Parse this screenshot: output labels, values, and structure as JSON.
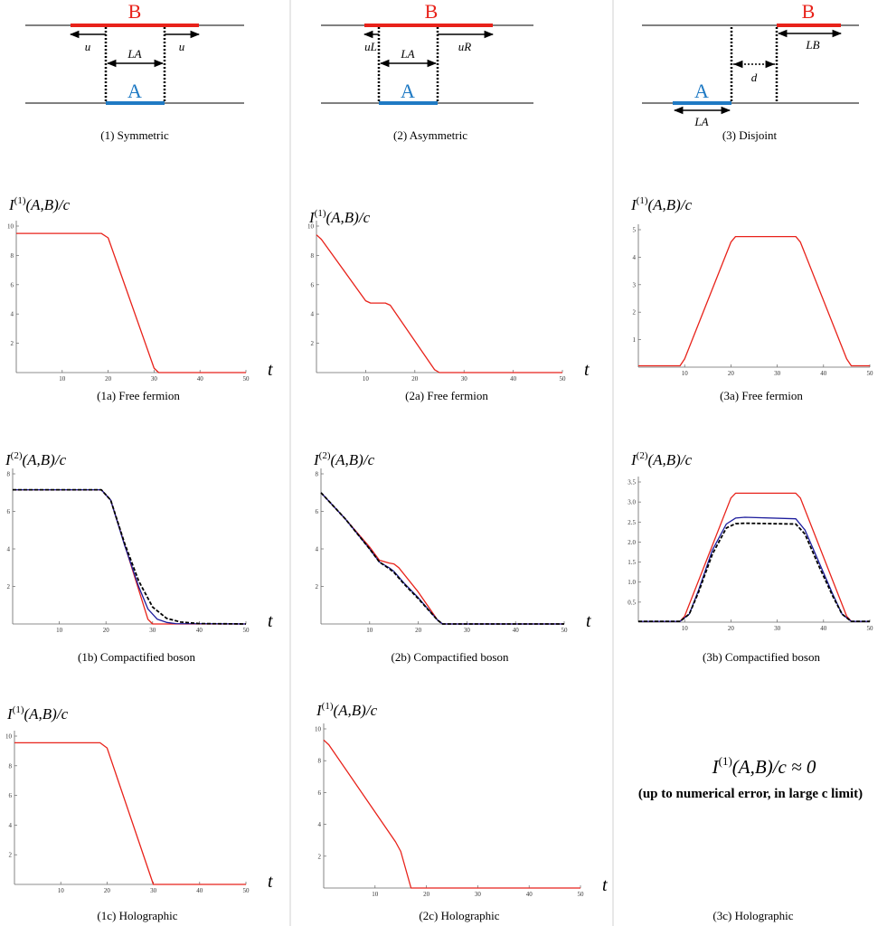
{
  "diagrams": [
    {
      "caption": "(1) Symmetric",
      "label_a": "A",
      "label_b": "B",
      "dim_left": "u",
      "dim_mid": "LA",
      "dim_right": "u"
    },
    {
      "caption": "(2) Asymmetric",
      "label_a": "A",
      "label_b": "B",
      "dim_left": "uL",
      "dim_mid": "LA",
      "dim_right": "uR"
    },
    {
      "caption": "(3) Disjoint",
      "label_a": "A",
      "label_b": "B",
      "dim_a": "LA",
      "dim_d": "d",
      "dim_b": "LB"
    }
  ],
  "colors": {
    "red": "#e8221a",
    "blue": "#1f7ac4",
    "navy": "#1c1c9c",
    "black": "#000000",
    "grid": "#d0d0d0"
  },
  "axis_var": "t",
  "chart_data": [
    {
      "id": "1a",
      "type": "line",
      "caption": "(1a) Free fermion",
      "ylabel": "I(1)(A,B)/c",
      "xlabel": "t",
      "xlim": [
        0,
        50
      ],
      "ylim": [
        0,
        10
      ],
      "xticks": [
        "10",
        "20",
        "30",
        "40",
        "50"
      ],
      "yticks": [
        "2",
        "4",
        "6",
        "8",
        "10"
      ],
      "series": [
        {
          "name": "red",
          "color": "#e8221a",
          "dash": false,
          "x": [
            0,
            18.5,
            20,
            30,
            31,
            50
          ],
          "y": [
            9.5,
            9.5,
            9.2,
            0.3,
            0,
            0
          ]
        }
      ]
    },
    {
      "id": "2a",
      "type": "line",
      "caption": "(2a) Free fermion",
      "ylabel": "I(1)(A,B)/c",
      "xlabel": "t",
      "xlim": [
        0,
        50
      ],
      "ylim": [
        0,
        10
      ],
      "xticks": [
        "10",
        "20",
        "30",
        "40",
        "50"
      ],
      "yticks": [
        "2",
        "4",
        "6",
        "8",
        "10"
      ],
      "series": [
        {
          "name": "red",
          "color": "#e8221a",
          "dash": false,
          "x": [
            0,
            1,
            10,
            11,
            14,
            15,
            24,
            25,
            50
          ],
          "y": [
            9.4,
            9.1,
            4.9,
            4.75,
            4.75,
            4.6,
            0.2,
            0,
            0
          ]
        }
      ]
    },
    {
      "id": "3a",
      "type": "line",
      "caption": "(3a) Free fermion",
      "ylabel": "I(1)(A,B)/c",
      "xlabel": "t",
      "xlim": [
        0,
        50
      ],
      "ylim": [
        0,
        5
      ],
      "xticks": [
        "10",
        "20",
        "30",
        "40",
        "50"
      ],
      "yticks": [
        "1",
        "2",
        "3",
        "4",
        "5"
      ],
      "series": [
        {
          "name": "red",
          "color": "#e8221a",
          "dash": false,
          "x": [
            0,
            9,
            10,
            20,
            21,
            34,
            35,
            45,
            46,
            50
          ],
          "y": [
            0.05,
            0.05,
            0.3,
            4.55,
            4.75,
            4.75,
            4.55,
            0.3,
            0.05,
            0.05
          ]
        }
      ]
    },
    {
      "id": "1b",
      "type": "line",
      "caption": "(1b) Compactified boson",
      "ylabel": "I(2)(A,B)/c",
      "xlabel": "t",
      "xlim": [
        0,
        50
      ],
      "ylim": [
        0,
        8
      ],
      "xticks": [
        "10",
        "20",
        "30",
        "40",
        "50"
      ],
      "yticks": [
        "2",
        "4",
        "6",
        "8"
      ],
      "series": [
        {
          "name": "red",
          "color": "#e8221a",
          "dash": false,
          "x": [
            0,
            19,
            21,
            29,
            30,
            50
          ],
          "y": [
            7.15,
            7.15,
            6.6,
            0.25,
            0,
            0
          ]
        },
        {
          "name": "blue",
          "color": "#1c1c9c",
          "dash": false,
          "x": [
            0,
            19,
            21,
            24,
            27,
            29,
            31,
            33,
            35,
            50
          ],
          "y": [
            7.15,
            7.15,
            6.6,
            4.2,
            2.0,
            0.8,
            0.25,
            0.08,
            0.02,
            0
          ]
        },
        {
          "name": "black",
          "color": "#000000",
          "dash": true,
          "x": [
            0,
            19,
            21,
            24,
            27,
            30,
            33,
            36,
            40,
            50
          ],
          "y": [
            7.15,
            7.15,
            6.6,
            4.3,
            2.3,
            0.9,
            0.3,
            0.1,
            0.02,
            0
          ]
        }
      ]
    },
    {
      "id": "2b",
      "type": "line",
      "caption": "(2b) Compactified boson",
      "ylabel": "I(2)(A,B)/c",
      "xlabel": "t",
      "xlim": [
        0,
        50
      ],
      "ylim": [
        0,
        8
      ],
      "xticks": [
        "10",
        "20",
        "30",
        "40",
        "50"
      ],
      "yticks": [
        "2",
        "4",
        "6",
        "8"
      ],
      "series": [
        {
          "name": "red",
          "color": "#e8221a",
          "dash": false,
          "x": [
            0,
            5,
            10,
            12,
            14,
            15,
            16,
            20,
            24,
            25,
            50
          ],
          "y": [
            7.0,
            5.6,
            4.1,
            3.4,
            3.25,
            3.2,
            3.0,
            1.7,
            0.2,
            0,
            0
          ]
        },
        {
          "name": "blue",
          "color": "#1c1c9c",
          "dash": false,
          "x": [
            0,
            5,
            10,
            12,
            14,
            15,
            17,
            20,
            24,
            25,
            50
          ],
          "y": [
            7.0,
            5.6,
            4.0,
            3.3,
            3.0,
            2.8,
            2.2,
            1.4,
            0.2,
            0,
            0
          ]
        },
        {
          "name": "black",
          "color": "#000000",
          "dash": true,
          "x": [
            0,
            5,
            10,
            12,
            14,
            15,
            17,
            20,
            24,
            25,
            50
          ],
          "y": [
            7.0,
            5.6,
            4.0,
            3.3,
            2.95,
            2.75,
            2.15,
            1.35,
            0.2,
            0,
            0
          ]
        }
      ]
    },
    {
      "id": "3b",
      "type": "line",
      "caption": "(3b) Compactified boson",
      "ylabel": "I(2)(A,B)/c",
      "xlabel": "t",
      "xlim": [
        0,
        50
      ],
      "ylim": [
        0,
        3.5
      ],
      "xticks": [
        "10",
        "20",
        "30",
        "40",
        "50"
      ],
      "yticks": [
        "0.5",
        "1.0",
        "1.5",
        "2.0",
        "2.5",
        "3.0",
        "3.5"
      ],
      "series": [
        {
          "name": "red",
          "color": "#e8221a",
          "dash": false,
          "x": [
            0,
            9,
            10,
            20,
            21,
            34,
            35,
            45,
            46,
            50
          ],
          "y": [
            0.02,
            0.02,
            0.15,
            3.1,
            3.22,
            3.22,
            3.1,
            0.15,
            0.02,
            0.02
          ]
        },
        {
          "name": "blue",
          "color": "#1c1c9c",
          "dash": false,
          "x": [
            0,
            9,
            11,
            13,
            16,
            19,
            21,
            23,
            34,
            36,
            39,
            42,
            44,
            46,
            50
          ],
          "y": [
            0.02,
            0.02,
            0.2,
            0.8,
            1.8,
            2.45,
            2.6,
            2.62,
            2.58,
            2.3,
            1.5,
            0.7,
            0.2,
            0.02,
            0.02
          ]
        },
        {
          "name": "black",
          "color": "#000000",
          "dash": true,
          "x": [
            0,
            9,
            11,
            13,
            16,
            19,
            21,
            23,
            34,
            36,
            39,
            42,
            44,
            46,
            50
          ],
          "y": [
            0.02,
            0.02,
            0.2,
            0.75,
            1.7,
            2.35,
            2.46,
            2.47,
            2.45,
            2.2,
            1.4,
            0.65,
            0.2,
            0.02,
            0.02
          ]
        }
      ]
    },
    {
      "id": "1c",
      "type": "line",
      "caption": "(1c) Holographic",
      "ylabel": "I(1)(A,B)/c",
      "xlabel": "t",
      "xlim": [
        0,
        50
      ],
      "ylim": [
        0,
        10
      ],
      "xticks": [
        "10",
        "20",
        "30",
        "40",
        "50"
      ],
      "yticks": [
        "2",
        "4",
        "6",
        "8",
        "10"
      ],
      "series": [
        {
          "name": "red",
          "color": "#e8221a",
          "dash": false,
          "x": [
            0,
            18.5,
            20,
            30,
            50
          ],
          "y": [
            9.55,
            9.55,
            9.2,
            0,
            0
          ]
        }
      ]
    },
    {
      "id": "2c",
      "type": "line",
      "caption": "(2c) Holographic",
      "ylabel": "I(1)(A,B)/c",
      "xlabel": "t",
      "xlim": [
        0,
        50
      ],
      "ylim": [
        0,
        10
      ],
      "xticks": [
        "10",
        "20",
        "30",
        "40",
        "50"
      ],
      "yticks": [
        "2",
        "4",
        "6",
        "8",
        "10"
      ],
      "series": [
        {
          "name": "red",
          "color": "#e8221a",
          "dash": false,
          "x": [
            0,
            1,
            14,
            15,
            17,
            50
          ],
          "y": [
            9.3,
            9.0,
            2.9,
            2.3,
            0,
            0
          ]
        }
      ]
    }
  ],
  "holographic_3c": {
    "formula": "I(1)(A,B)/c ≈ 0",
    "note": "(up to numerical error, in large c limit)",
    "caption": "(3c) Holographic"
  }
}
